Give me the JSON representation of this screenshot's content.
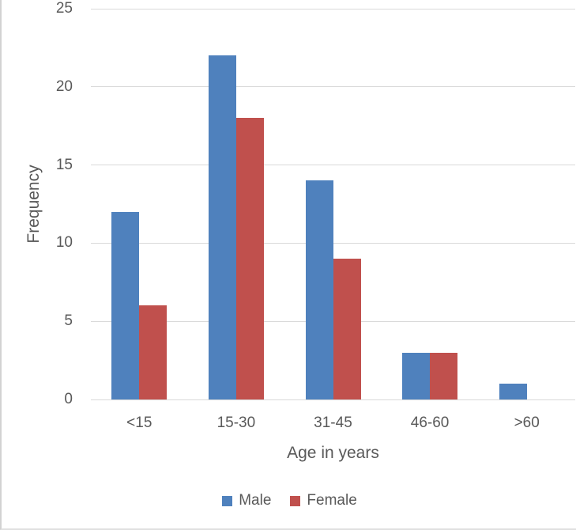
{
  "chart_data": {
    "type": "bar",
    "title": "",
    "xlabel": "Age in years",
    "ylabel": "Frequency",
    "categories": [
      "<15",
      "15-30",
      "31-45",
      "46-60",
      ">60"
    ],
    "series": [
      {
        "name": "Male",
        "color": "#4F81BD",
        "values": [
          12,
          22,
          14,
          3,
          1
        ]
      },
      {
        "name": "Female",
        "color": "#C0504D",
        "values": [
          6,
          18,
          9,
          3,
          0
        ]
      }
    ],
    "ylim": [
      0,
      25
    ],
    "yticks": [
      0,
      5,
      10,
      15,
      20,
      25
    ],
    "grid": "horizontal",
    "legend_position": "bottom",
    "colors": {
      "grid": "#D9D9D9",
      "axis_text": "#595959",
      "background": "#FFFFFF"
    }
  }
}
